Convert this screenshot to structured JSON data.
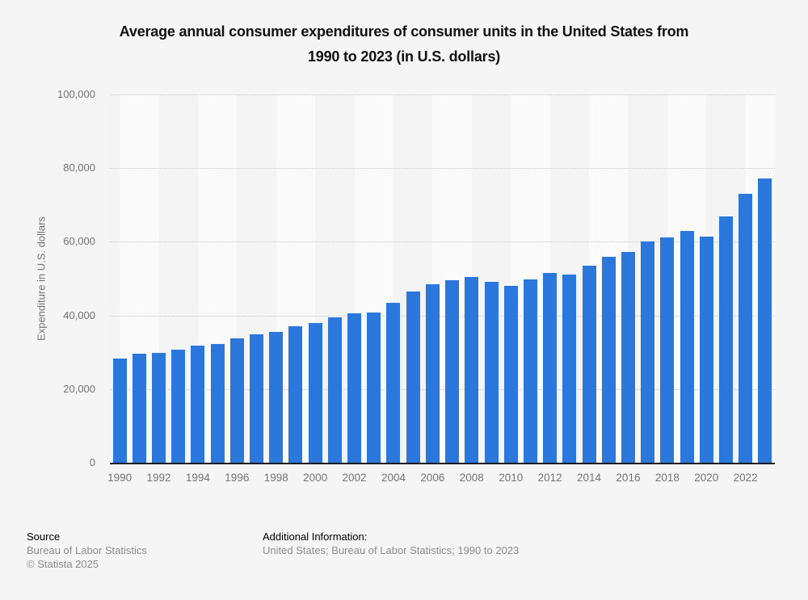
{
  "title": {
    "line1": "Average annual consumer expenditures of consumer units in the United States from",
    "line2": "1990 to 2023 (in U.S. dollars)"
  },
  "chart_data": {
    "type": "bar",
    "title": "Average annual consumer expenditures of consumer units in the United States from 1990 to 2023 (in U.S. dollars)",
    "categories": [
      1990,
      1991,
      1992,
      1993,
      1994,
      1995,
      1996,
      1997,
      1998,
      1999,
      2000,
      2001,
      2002,
      2003,
      2004,
      2005,
      2006,
      2007,
      2008,
      2009,
      2010,
      2011,
      2012,
      2013,
      2014,
      2015,
      2016,
      2017,
      2018,
      2019,
      2020,
      2021,
      2022,
      2023
    ],
    "values": [
      28381,
      29614,
      29846,
      30692,
      31731,
      32264,
      33797,
      34819,
      35535,
      36995,
      38045,
      39518,
      40677,
      40817,
      43395,
      46409,
      48398,
      49638,
      50486,
      49067,
      48109,
      49705,
      51442,
      51100,
      53495,
      55978,
      57311,
      60060,
      61224,
      63036,
      61334,
      66928,
      72967,
      77280
    ],
    "xlabel": "",
    "ylabel": "Expenditure in U.S. dollars",
    "ylim": [
      0,
      100000
    ],
    "yticks": [
      {
        "value": 0,
        "label": "0"
      },
      {
        "value": 20000,
        "label": "20,000"
      },
      {
        "value": 40000,
        "label": "40,000"
      },
      {
        "value": 60000,
        "label": "60,000"
      },
      {
        "value": 80000,
        "label": "80,000"
      },
      {
        "value": 100000,
        "label": "100,000"
      }
    ],
    "xtick_labels": [
      "1990",
      "1992",
      "1994",
      "1996",
      "1998",
      "2000",
      "2002",
      "2004",
      "2006",
      "2008",
      "2010",
      "2012",
      "2014",
      "2016",
      "2018",
      "2020",
      "2022"
    ],
    "grid": "horizontal-dotted",
    "legend": "none",
    "bar_color": "#2b77db",
    "band_light": "#fafafa",
    "band_dark": "#f4f4f4"
  },
  "colors": {
    "page_background": "#f5f5f5",
    "axis_line": "#1a1a1a",
    "tick_text": "#737373",
    "gridline": "#c9c9c9",
    "footer_gray": "#8c8c8c",
    "title_text": "#111111"
  },
  "footer": {
    "source_label": "Source",
    "source_line1": "Bureau of Labor Statistics",
    "source_line2": "© Statista 2025",
    "additional_label": "Additional Information:",
    "additional_text": "United States; Bureau of Labor Statistics; 1990 to 2023"
  }
}
